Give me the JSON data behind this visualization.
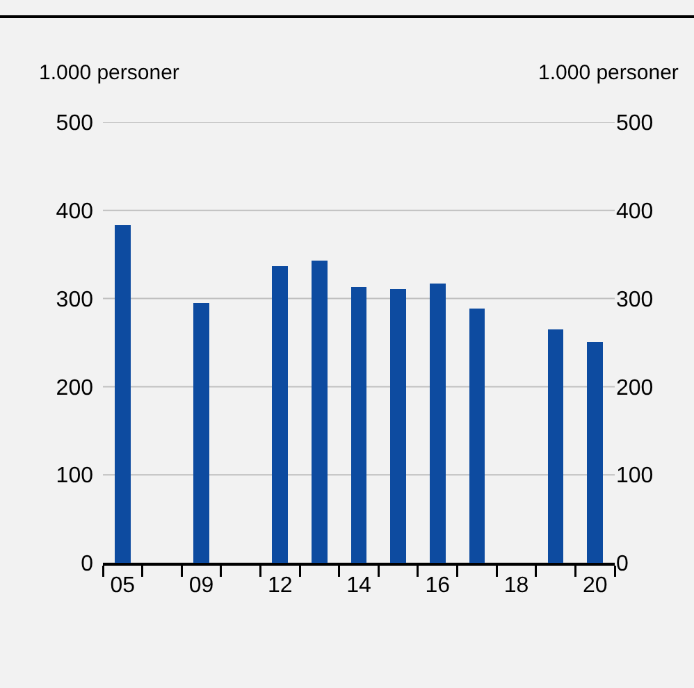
{
  "chart_data": {
    "type": "bar",
    "ylabel": "1.000 personer",
    "y2label": "1.000 personer",
    "categories": [
      "05",
      null,
      "09",
      null,
      "12",
      null,
      "14",
      null,
      "16",
      null,
      "18",
      null,
      "20"
    ],
    "values": [
      383,
      null,
      295,
      null,
      337,
      343,
      313,
      311,
      317,
      289,
      null,
      265,
      251
    ],
    "color": "#0d4ba0",
    "ylim": [
      0,
      500
    ],
    "yticks": [
      0,
      100,
      200,
      300,
      400,
      500
    ],
    "y2lim": [
      0,
      500
    ],
    "y2ticks": [
      0,
      100,
      200,
      300,
      400,
      500
    ],
    "grid": "y"
  }
}
